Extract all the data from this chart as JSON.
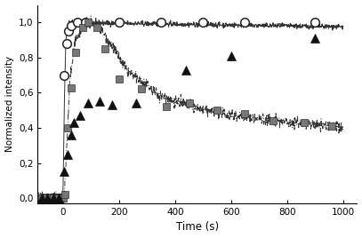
{
  "title": "",
  "xlabel": "Time (s)",
  "ylabel": "Normalized intensity",
  "xlim": [
    -90,
    1050
  ],
  "ylim": [
    -0.03,
    1.1
  ],
  "yticks": [
    0.0,
    0.2,
    0.4,
    0.6,
    0.8,
    1.0
  ],
  "ytick_labels": [
    "0,0",
    "0,2",
    "0,4",
    "0,6",
    "0,8",
    "1,0"
  ],
  "xticks": [
    0,
    200,
    400,
    600,
    800,
    1000
  ],
  "circles_x": [
    -75,
    -55,
    -40,
    -25,
    -15,
    -5,
    5,
    12,
    20,
    30,
    50,
    80,
    200,
    350,
    500,
    650,
    900
  ],
  "circles_y": [
    0.0,
    0.0,
    0.0,
    0.0,
    0.0,
    0.0,
    0.7,
    0.88,
    0.95,
    0.98,
    1.0,
    1.0,
    1.0,
    1.0,
    1.0,
    1.0,
    1.0
  ],
  "squares_x": [
    -75,
    -55,
    -35,
    -15,
    0,
    8,
    18,
    28,
    45,
    70,
    90,
    120,
    150,
    200,
    280,
    370,
    450,
    550,
    650,
    750,
    860,
    960
  ],
  "squares_y": [
    0.0,
    0.0,
    0.0,
    0.0,
    0.0,
    0.02,
    0.4,
    0.63,
    0.83,
    0.97,
    1.0,
    0.97,
    0.85,
    0.68,
    0.62,
    0.52,
    0.54,
    0.5,
    0.48,
    0.44,
    0.43,
    0.41
  ],
  "triangles_x": [
    -75,
    -55,
    -35,
    -15,
    5,
    18,
    28,
    40,
    60,
    90,
    130,
    175,
    260,
    440,
    600,
    900
  ],
  "triangles_y": [
    0.0,
    0.0,
    0.0,
    0.0,
    0.15,
    0.25,
    0.36,
    0.43,
    0.47,
    0.54,
    0.55,
    0.53,
    0.54,
    0.73,
    0.81,
    0.91
  ],
  "background_color": "#ffffff"
}
